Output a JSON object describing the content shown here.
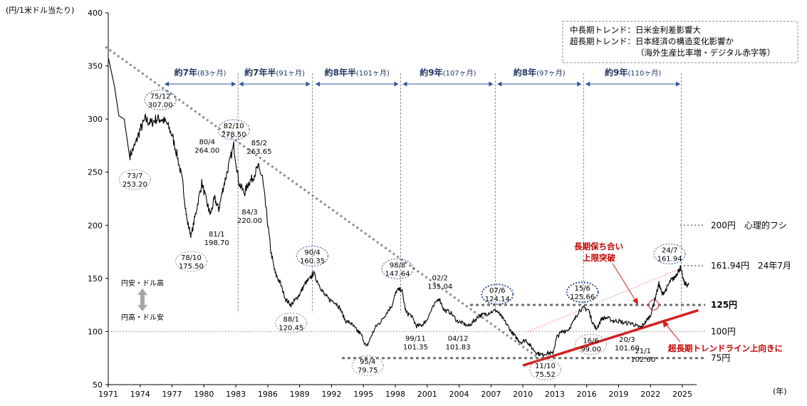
{
  "chart_data": {
    "type": "line",
    "ylabel": "(円/1米ドル当たり)",
    "xunit": "(年)",
    "xlim": [
      1971,
      2026.5
    ],
    "ylim": [
      50,
      400
    ],
    "xticks": [
      1971,
      1974,
      1977,
      1980,
      1983,
      1986,
      1989,
      1992,
      1995,
      1998,
      2001,
      2004,
      2007,
      2010,
      2013,
      2016,
      2019,
      2022,
      2025
    ],
    "yticks": [
      50,
      100,
      150,
      200,
      250,
      300,
      350,
      400
    ],
    "series": [
      {
        "x": [
          1971.0,
          1971.6,
          1972.0,
          1972.5,
          1973.0,
          1973.5,
          1974.0,
          1974.5,
          1975.0,
          1975.5,
          1976.0,
          1976.5,
          1977.0,
          1977.5,
          1978.0,
          1978.4,
          1978.8,
          1979.3,
          1979.8,
          1980.3,
          1980.6,
          1981.0,
          1981.4,
          1981.8,
          1982.3,
          1982.8,
          1983.3,
          1983.8,
          1984.2,
          1984.6,
          1985.1,
          1985.5,
          1985.9,
          1986.3,
          1986.7,
          1987.2,
          1987.7,
          1988.2,
          1988.6,
          1989.0,
          1989.5,
          1990.0,
          1990.3,
          1990.8,
          1991.3,
          1991.8,
          1992.3,
          1992.8,
          1993.3,
          1993.8,
          1994.3,
          1994.8,
          1995.3,
          1995.7,
          1996.2,
          1996.7,
          1997.2,
          1997.7,
          1998.1,
          1998.6,
          1999.0,
          1999.5,
          2000.0,
          2000.5,
          2000.9,
          2001.4,
          2002.1,
          2002.6,
          2003.2,
          2003.8,
          2004.3,
          2004.9,
          2005.4,
          2005.9,
          2006.4,
          2006.9,
          2007.5,
          2007.9,
          2008.4,
          2008.9,
          2009.3,
          2009.8,
          2010.3,
          2010.8,
          2011.3,
          2011.8,
          2012.3,
          2012.8,
          2013.2,
          2013.7,
          2014.3,
          2014.8,
          2015.3,
          2015.8,
          2016.2,
          2016.5,
          2016.9,
          2017.4,
          2017.9,
          2018.5,
          2019.0,
          2019.5,
          2020.2,
          2020.7,
          2021.1,
          2021.6,
          2022.0,
          2022.4,
          2022.8,
          2023.1,
          2023.5,
          2023.9,
          2024.2,
          2024.5,
          2024.8,
          2025.2,
          2025.6
        ],
        "values": [
          358,
          330,
          303,
          300,
          265,
          275,
          290,
          300,
          296,
          300,
          300,
          296,
          285,
          265,
          240,
          205,
          190,
          215,
          240,
          220,
          210,
          225,
          215,
          235,
          255,
          275,
          240,
          230,
          240,
          245,
          255,
          245,
          210,
          175,
          155,
          145,
          130,
          125,
          130,
          135,
          145,
          150,
          155,
          145,
          135,
          130,
          128,
          122,
          110,
          108,
          102,
          97,
          85,
          95,
          105,
          110,
          118,
          125,
          138,
          140,
          118,
          115,
          105,
          106,
          110,
          120,
          132,
          120,
          118,
          110,
          108,
          105,
          110,
          115,
          116,
          118,
          120,
          115,
          108,
          100,
          95,
          90,
          92,
          85,
          80,
          78,
          80,
          79,
          95,
          100,
          102,
          110,
          120,
          122,
          120,
          110,
          102,
          112,
          113,
          110,
          110,
          108,
          108,
          105,
          104,
          110,
          115,
          130,
          145,
          135,
          140,
          148,
          150,
          155,
          160,
          145,
          144
        ]
      }
    ],
    "lines": {
      "long_downtrend": {
        "x": [
          1971,
          2011.5
        ],
        "y": [
          368,
          75
        ]
      },
      "upper_channel": {
        "x": [
          2010.5,
          2025.0
        ],
        "y": [
          100,
          160
        ]
      },
      "uptrend": {
        "x": [
          2010.0,
          2026.5
        ],
        "y": [
          68,
          120
        ]
      }
    },
    "levels": [
      {
        "value": 200,
        "label": "200円　心理的フシ",
        "style": "dotted"
      },
      {
        "value": 161.94,
        "label": "161.94円　24年7月",
        "style": "dotted"
      },
      {
        "value": 125,
        "label": "125円",
        "style": "bold-dotted"
      },
      {
        "value": 100,
        "label": "100円",
        "style": "dotted-light"
      },
      {
        "value": 75,
        "label": "75円",
        "style": "bold-dotted"
      }
    ],
    "cycles": [
      {
        "x1": 1976.3,
        "x2": 1983.0,
        "strong": "約7年",
        "light": "(83ヶ月)"
      },
      {
        "x1": 1983.3,
        "x2": 1990.0,
        "strong": "約7年半",
        "light": "(91ヶ月)"
      },
      {
        "x1": 1990.5,
        "x2": 1998.3,
        "strong": "約8年半",
        "light": "(101ヶ月)"
      },
      {
        "x1": 1998.7,
        "x2": 2007.2,
        "strong": "約9年",
        "light": "(107ヶ月)"
      },
      {
        "x1": 2007.6,
        "x2": 2015.5,
        "strong": "約8年",
        "light": "(97ヶ月)"
      },
      {
        "x1": 2015.9,
        "x2": 2024.8,
        "strong": "約9年",
        "light": "(110ヶ月)"
      }
    ],
    "cycle_dividers": [
      1983.2,
      1990.2,
      1998.5,
      2007.4,
      2015.7,
      2024.9
    ],
    "annotations": [
      {
        "date": "73/7",
        "value": "253.20",
        "x": 1973.5,
        "y": 243,
        "circle": "gray"
      },
      {
        "date": "75/12",
        "value": "307.00",
        "x": 1975.9,
        "y": 318,
        "circle": "blue"
      },
      {
        "date": "78/10",
        "value": "175.50",
        "x": 1978.8,
        "y": 166,
        "circle": "gray"
      },
      {
        "date": "80/4",
        "value": "264.00",
        "x": 1980.3,
        "y": 275,
        "circle": "none"
      },
      {
        "date": "81/1",
        "value": "198.70",
        "x": 1981.2,
        "y": 188,
        "circle": "none"
      },
      {
        "date": "82/10",
        "value": "278.50",
        "x": 1982.8,
        "y": 290,
        "circle": "blue"
      },
      {
        "date": "84/3",
        "value": "220.00",
        "x": 1984.3,
        "y": 209,
        "circle": "none"
      },
      {
        "date": "85/2",
        "value": "263.65",
        "x": 1985.2,
        "y": 274,
        "circle": "none"
      },
      {
        "date": "88/1",
        "value": "120.45",
        "x": 1988.2,
        "y": 108,
        "circle": "gray"
      },
      {
        "date": "90/4",
        "value": "160.35",
        "x": 1990.2,
        "y": 171,
        "circle": "blue"
      },
      {
        "date": "95/4",
        "value": "79.75",
        "x": 1995.4,
        "y": 68,
        "circle": "gray"
      },
      {
        "date": "98/8",
        "value": "147.64",
        "x": 1998.2,
        "y": 159,
        "circle": "blue"
      },
      {
        "date": "99/11",
        "value": "101.35",
        "x": 1999.9,
        "y": 90,
        "circle": "none"
      },
      {
        "date": "02/2",
        "value": "135.04",
        "x": 2002.2,
        "y": 147,
        "circle": "none"
      },
      {
        "date": "04/12",
        "value": "101.83",
        "x": 2003.9,
        "y": 90,
        "circle": "none"
      },
      {
        "date": "07/6",
        "value": "124.14",
        "x": 2007.6,
        "y": 135,
        "circle": "blue-bold"
      },
      {
        "date": "11/10",
        "value": "75.52",
        "x": 2012.1,
        "y": 64,
        "circle": "gray"
      },
      {
        "date": "15/6",
        "value": "125.66",
        "x": 2015.6,
        "y": 137,
        "circle": "blue-bold"
      },
      {
        "date": "16/6",
        "value": "99.00",
        "x": 2016.4,
        "y": 88,
        "circle": "gray"
      },
      {
        "date": "20/3",
        "value": "101.60",
        "x": 2019.8,
        "y": 89,
        "circle": "none"
      },
      {
        "date": "21/1",
        "value": "102.60",
        "x": 2021.3,
        "y": 78,
        "circle": "none"
      },
      {
        "date": "24/7",
        "value": "161.94",
        "x": 2023.8,
        "y": 173,
        "circle": "blue"
      }
    ],
    "notes": {
      "box_line1": "中長期トレンド：日米金利差影響大",
      "box_line2": "超長期トレンド：日本経済の構造変化影響か",
      "box_line3": "（海外生産比率増・デジタル赤字等）",
      "red_note_1a": "長期保ち合い",
      "red_note_1b": "上限突破",
      "red_note_2": "超長期トレンドライン上向きに",
      "side_top": "円安・ドル高",
      "side_bottom": "円高・ドル安"
    },
    "colors": {
      "price": "#000000",
      "downtrend": "#8c8c8c",
      "uptrend": "#d42020",
      "channel": "#e05050",
      "cycle_arrow": "#2f5597",
      "grid_dotted": "#8c8c8c",
      "circle_blue": "#2f5597",
      "circle_gray": "#8c8c8c"
    }
  }
}
